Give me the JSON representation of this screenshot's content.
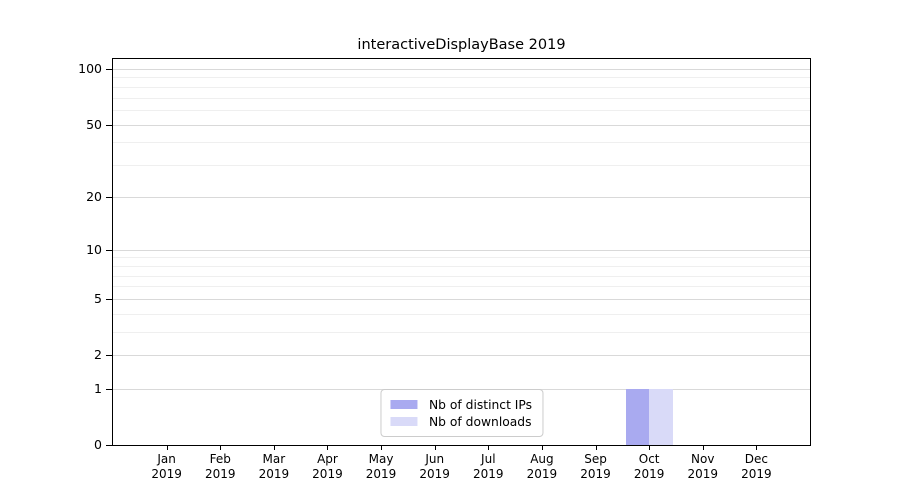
{
  "title": "interactiveDisplayBase 2019",
  "chart_data": {
    "type": "bar",
    "title": "interactiveDisplayBase 2019",
    "categories": [
      "Jan",
      "Feb",
      "Mar",
      "Apr",
      "May",
      "Jun",
      "Jul",
      "Aug",
      "Sep",
      "Oct",
      "Nov",
      "Dec"
    ],
    "category_year": "2019",
    "series": [
      {
        "name": "Nb of distinct IPs",
        "color": "#a9aaf0",
        "values": [
          0,
          0,
          0,
          0,
          0,
          0,
          0,
          0,
          0,
          1,
          0,
          0
        ]
      },
      {
        "name": "Nb of downloads",
        "color": "#d9daf8",
        "values": [
          0,
          0,
          0,
          0,
          0,
          0,
          0,
          0,
          0,
          1,
          0,
          0
        ]
      }
    ],
    "yscale": "log1p",
    "yticks_major": [
      0,
      1,
      2,
      5,
      10,
      20,
      50,
      100
    ],
    "yticks_minor": [
      3,
      4,
      6,
      7,
      8,
      9,
      30,
      40,
      60,
      70,
      80,
      90
    ],
    "ylim": [
      0,
      113
    ],
    "grid": true,
    "legend_position": "lower center",
    "colors": {
      "grid_major": "#d9d9d9",
      "grid_minor": "#efefef",
      "spine": "#000000",
      "text": "#000000",
      "legend_border": "#cccccc",
      "background": "#ffffff"
    }
  }
}
